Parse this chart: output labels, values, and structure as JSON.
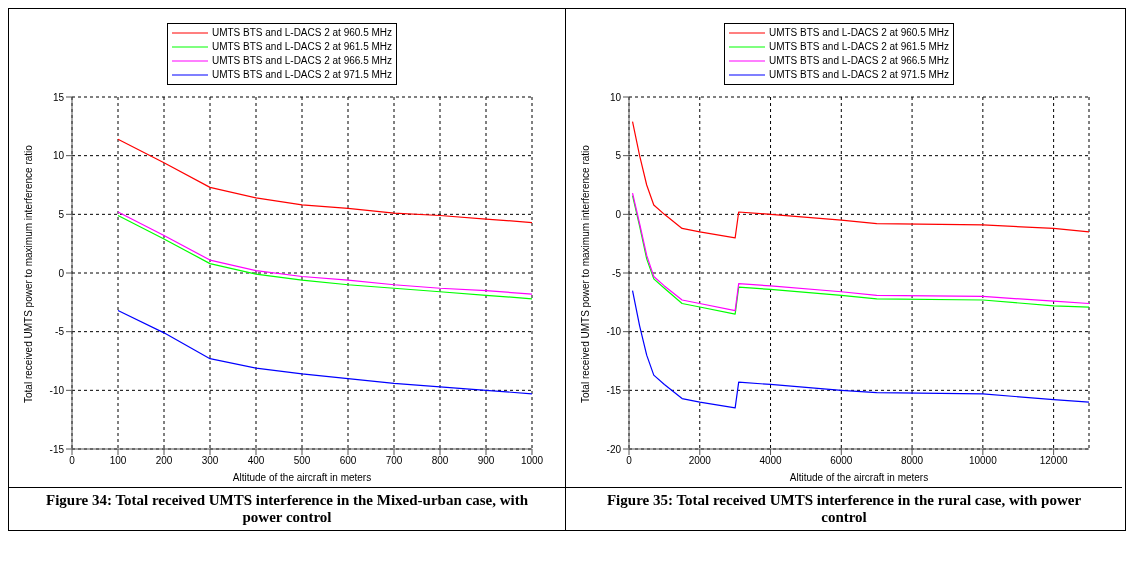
{
  "chart_data": [
    {
      "type": "line",
      "title": "Figure 34: Total received UMTS interference in the Mixed-urban case, with power control",
      "xlabel": "Altitude of the aircraft in meters",
      "ylabel": "Total received UMTS power to maximum interference ratio",
      "x": [
        100,
        200,
        300,
        400,
        500,
        600,
        700,
        800,
        900,
        1000
      ],
      "series": [
        {
          "name": "UMTS BTS and L-DACS 2 at 960.5 MHz",
          "color": "#ff0000",
          "values": [
            11.4,
            9.4,
            7.3,
            6.4,
            5.8,
            5.5,
            5.1,
            4.9,
            4.6,
            4.3
          ]
        },
        {
          "name": "UMTS BTS and L-DACS 2 at 961.5 MHz",
          "color": "#00ff00",
          "values": [
            4.9,
            2.9,
            0.8,
            -0.1,
            -0.6,
            -1.0,
            -1.3,
            -1.6,
            -1.9,
            -2.2
          ]
        },
        {
          "name": "UMTS BTS and L-DACS 2 at 966.5 MHz",
          "color": "#ff00ff",
          "values": [
            5.2,
            3.2,
            1.1,
            0.2,
            -0.3,
            -0.6,
            -1.0,
            -1.3,
            -1.5,
            -1.8
          ]
        },
        {
          "name": "UMTS BTS and L-DACS 2 at 971.5 MHz",
          "color": "#0000ff",
          "values": [
            -3.2,
            -5.1,
            -7.3,
            -8.1,
            -8.6,
            -9.0,
            -9.4,
            -9.7,
            -10.0,
            -10.3
          ]
        }
      ],
      "xlim": [
        0,
        1000
      ],
      "xticks": [
        0,
        100,
        200,
        300,
        400,
        500,
        600,
        700,
        800,
        900,
        1000
      ],
      "ylim": [
        -15,
        15
      ],
      "yticks": [
        -15,
        -10,
        -5,
        0,
        5,
        10,
        15
      ],
      "grid": true,
      "legend": "top",
      "line_style": "solid"
    },
    {
      "type": "line",
      "title": "Figure 35: Total received UMTS interference in the rural case, with power control",
      "xlabel": "Altitude of the aircraft in meters",
      "ylabel": "Total received UMTS power to maximum interference ratio",
      "x": [
        100,
        300,
        500,
        700,
        1000,
        1500,
        2000,
        3000,
        3100,
        4000,
        6000,
        7000,
        10000,
        12000,
        13000
      ],
      "series": [
        {
          "name": "UMTS BTS and L-DACS 2 at 960.5 MHz",
          "color": "#ff0000",
          "values": [
            7.9,
            5.0,
            2.5,
            0.8,
            0,
            -1.2,
            -1.5,
            -2.0,
            0.2,
            0,
            -0.5,
            -0.8,
            -0.9,
            -1.2,
            -1.5
          ]
        },
        {
          "name": "UMTS BTS and L-DACS 2 at 961.5 MHz",
          "color": "#00ff00",
          "values": [
            1.6,
            -1.0,
            -3.8,
            -5.5,
            -6.3,
            -7.6,
            -7.9,
            -8.5,
            -6.2,
            -6.4,
            -6.9,
            -7.2,
            -7.3,
            -7.8,
            -7.9
          ]
        },
        {
          "name": "UMTS BTS and L-DACS 2 at 966.5 MHz",
          "color": "#ff00ff",
          "values": [
            1.8,
            -0.8,
            -3.5,
            -5.3,
            -6.1,
            -7.3,
            -7.6,
            -8.2,
            -5.9,
            -6.1,
            -6.6,
            -6.9,
            -7.0,
            -7.4,
            -7.6
          ]
        },
        {
          "name": "UMTS BTS and L-DACS 2 at 971.5 MHz",
          "color": "#0000ff",
          "values": [
            -6.5,
            -9.5,
            -12.0,
            -13.7,
            -14.5,
            -15.7,
            -16.0,
            -16.5,
            -14.3,
            -14.5,
            -15.0,
            -15.2,
            -15.3,
            -15.8,
            -16.0
          ]
        }
      ],
      "xlim": [
        0,
        13000
      ],
      "xticks": [
        0,
        2000,
        4000,
        6000,
        8000,
        10000,
        12000
      ],
      "ylim": [
        -20,
        10
      ],
      "yticks": [
        -20,
        -15,
        -10,
        -5,
        0,
        5,
        10
      ],
      "grid": true,
      "legend": "top",
      "line_style": "solid"
    }
  ]
}
